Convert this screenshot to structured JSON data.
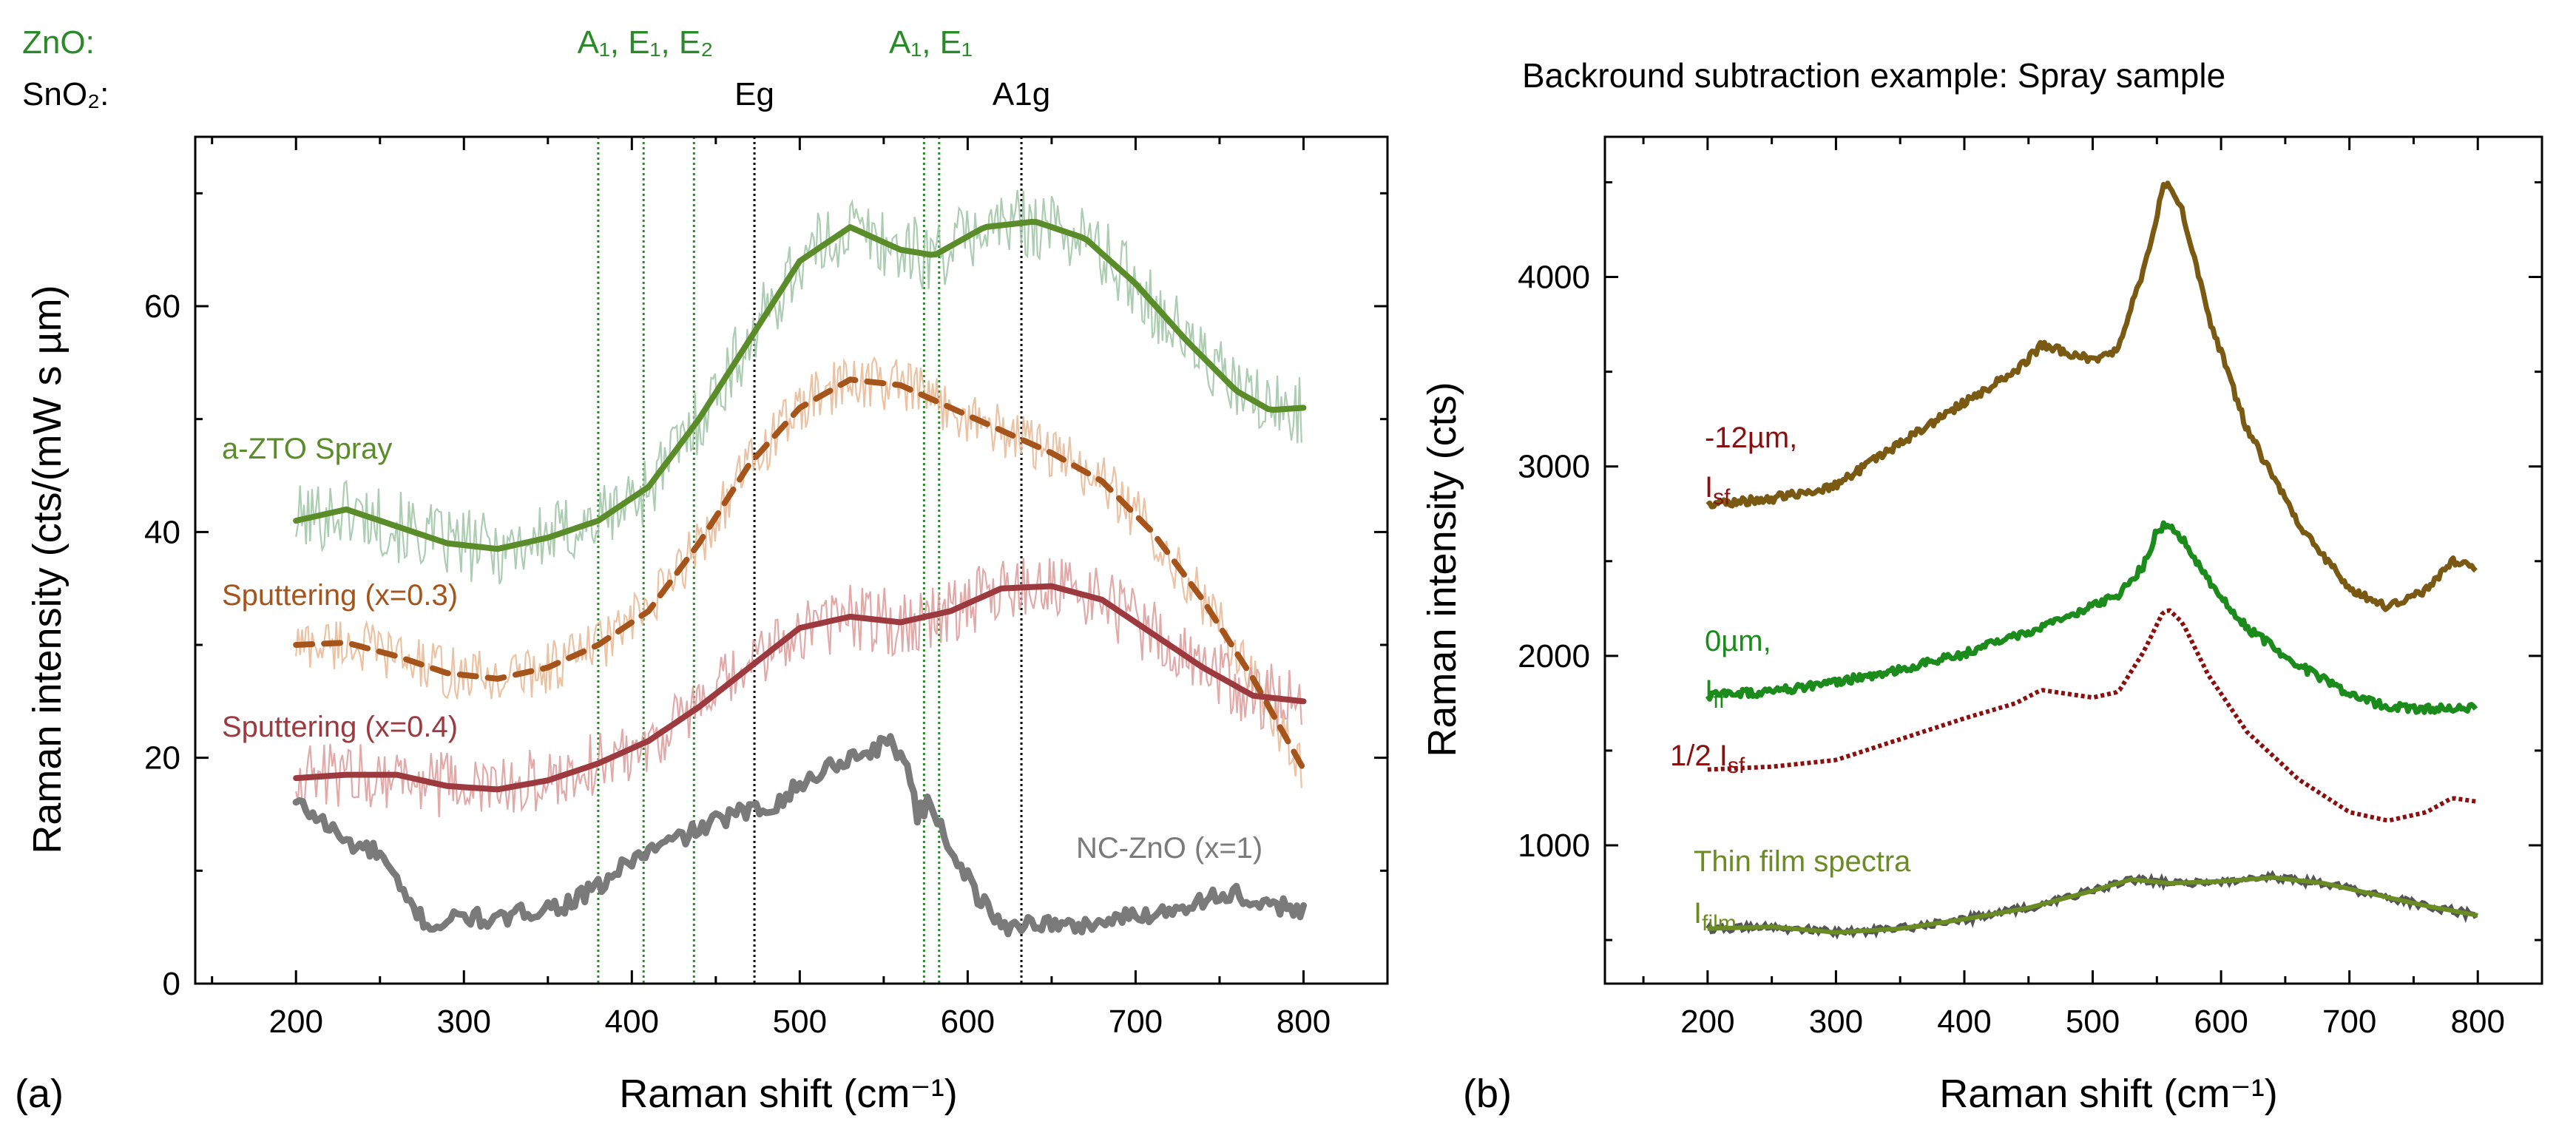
{
  "figure": {
    "panel_a_tag": "(a)",
    "panel_b_tag": "(b)",
    "colors": {
      "green": "#5b8c2a",
      "green_raw": "#9dc4a4",
      "orange": "#a5541c",
      "orange_raw": "#e8b994",
      "red": "#9c3a3f",
      "red_raw": "#dc9b9a",
      "gray": "#7a7a7a",
      "mode_green": "#2a8a2a",
      "brown": "#7a5a12",
      "b_green": "#1b8c1b",
      "darkred": "#8b0f0f",
      "olive": "#6b8c23",
      "film_gray": "#555555"
    }
  },
  "chart_data": [
    {
      "type": "line",
      "panel": "a",
      "xlabel": "Raman shift (cm⁻¹)",
      "ylabel": "Raman intensity (cts/(mW s µm)",
      "xlim": [
        140,
        850
      ],
      "ylim": [
        0,
        75
      ],
      "xticks": [
        200,
        300,
        400,
        500,
        600,
        700,
        800
      ],
      "yticks": [
        0,
        20,
        40,
        60
      ],
      "mode_rows": {
        "zno_label": "ZnO:",
        "sno2_label": "SnO₂:",
        "zno_groups": [
          {
            "label": "A₁, E₁, E₂",
            "x": 408
          },
          {
            "label": "A₁, E₁",
            "x": 578
          }
        ],
        "sno2_modes": [
          {
            "label": "Eg",
            "x": 473
          },
          {
            "label": "A1g",
            "x": 632
          }
        ]
      },
      "vlines": {
        "green_dotted": [
          380,
          407,
          437,
          574,
          583
        ],
        "black_dotted": [
          473,
          632
        ]
      },
      "series": [
        {
          "name": "a-ZTO Spray",
          "style": "solid",
          "noise_amp": 3.2,
          "x": [
            200,
            230,
            260,
            290,
            320,
            350,
            380,
            410,
            440,
            470,
            500,
            530,
            560,
            580,
            610,
            640,
            670,
            700,
            730,
            760,
            780,
            800
          ],
          "y": [
            41,
            42,
            40.5,
            39,
            38.5,
            39.5,
            41,
            44,
            50,
            57,
            64,
            67,
            65,
            64.5,
            67,
            67.5,
            66,
            62,
            57,
            52.5,
            50.8,
            51
          ]
        },
        {
          "name": "Sputtering (x=0.3)",
          "style": "dashed",
          "noise_amp": 2.4,
          "x": [
            200,
            230,
            260,
            290,
            320,
            350,
            380,
            410,
            440,
            470,
            500,
            530,
            560,
            590,
            620,
            650,
            680,
            710,
            740,
            770,
            800
          ],
          "y": [
            30,
            30.2,
            29,
            27.5,
            27,
            28,
            30,
            33,
            39,
            46,
            51,
            53.5,
            53,
            51,
            49,
            47,
            44.5,
            40,
            34,
            27,
            19
          ]
        },
        {
          "name": "Sputtering (x=0.4)",
          "style": "solid",
          "noise_amp": 3.0,
          "x": [
            200,
            230,
            260,
            290,
            320,
            350,
            380,
            410,
            440,
            470,
            500,
            530,
            560,
            590,
            620,
            650,
            680,
            710,
            740,
            770,
            800
          ],
          "y": [
            18.2,
            18.5,
            18.5,
            17.5,
            17.2,
            18,
            19.5,
            21.5,
            24.5,
            28,
            31.5,
            32.5,
            32,
            33,
            35,
            35.2,
            34,
            31,
            28,
            25.5,
            25
          ]
        },
        {
          "name": "NC-ZnO (x=1)",
          "style": "solid",
          "noise_amp": 0,
          "x": [
            200,
            215,
            230,
            250,
            265,
            280,
            300,
            320,
            340,
            360,
            380,
            400,
            430,
            460,
            480,
            500,
            520,
            540,
            555,
            565,
            570,
            578,
            590,
            605,
            620,
            640,
            660,
            680,
            700,
            720,
            740,
            760,
            770,
            790,
            800
          ],
          "y": [
            16,
            14.5,
            12.5,
            11.5,
            7.5,
            5,
            6,
            5.5,
            6.5,
            7,
            8.5,
            11,
            13,
            15,
            15.5,
            17.5,
            19.5,
            20.5,
            21.5,
            19,
            15,
            16,
            12,
            8,
            5,
            5.5,
            5,
            5.5,
            6,
            6.5,
            7.5,
            8,
            6.5,
            7,
            6.5
          ]
        }
      ]
    },
    {
      "type": "line",
      "panel": "b",
      "title": "Backround subtraction example: Spray sample",
      "xlabel": "Raman shift (cm⁻¹)",
      "ylabel": "Raman intensity (cts)",
      "xlim": [
        120,
        850
      ],
      "ylim": [
        270,
        4740
      ],
      "xticks": [
        200,
        300,
        400,
        500,
        600,
        700,
        800
      ],
      "yticks": [
        1000,
        2000,
        3000,
        4000
      ],
      "series": [
        {
          "name": "-12µm,",
          "name2": "I",
          "name2_sub": "sf",
          "style": "solid",
          "x": [
            200,
            250,
            300,
            350,
            400,
            440,
            460,
            480,
            500,
            520,
            540,
            555,
            560,
            570,
            590,
            620,
            660,
            700,
            730,
            760,
            780,
            800
          ],
          "y": [
            2800,
            2830,
            2900,
            3120,
            3340,
            3500,
            3640,
            3600,
            3560,
            3620,
            4050,
            4470,
            4480,
            4350,
            3800,
            3200,
            2700,
            2350,
            2260,
            2350,
            2500,
            2460
          ]
        },
        {
          "name": "0µm,",
          "name2": "I",
          "name2_sub": "ff",
          "style": "solid",
          "x": [
            200,
            250,
            300,
            350,
            400,
            450,
            500,
            520,
            540,
            550,
            560,
            570,
            590,
            620,
            660,
            700,
            730,
            760,
            780,
            800
          ],
          "y": [
            1790,
            1810,
            1860,
            1930,
            2010,
            2130,
            2260,
            2320,
            2480,
            2660,
            2700,
            2620,
            2400,
            2150,
            1950,
            1800,
            1730,
            1720,
            1730,
            1720
          ]
        },
        {
          "name": "1/2 I",
          "name2": "sf",
          "style": "dotted",
          "x": [
            200,
            250,
            300,
            350,
            400,
            440,
            460,
            480,
            500,
            520,
            540,
            555,
            560,
            570,
            590,
            620,
            660,
            700,
            730,
            760,
            780,
            800
          ],
          "y": [
            1400,
            1415,
            1450,
            1560,
            1670,
            1750,
            1820,
            1800,
            1780,
            1810,
            2025,
            2235,
            2240,
            2175,
            1900,
            1600,
            1350,
            1175,
            1130,
            1175,
            1250,
            1230
          ]
        },
        {
          "name": "Thin film spectra",
          "name2": "I",
          "name2_sub": "film",
          "style": "solid",
          "x": [
            200,
            250,
            300,
            350,
            400,
            450,
            500,
            530,
            560,
            600,
            640,
            680,
            720,
            760,
            800
          ],
          "y": [
            560,
            570,
            540,
            560,
            610,
            670,
            760,
            820,
            800,
            810,
            830,
            800,
            740,
            680,
            630
          ]
        }
      ]
    }
  ]
}
